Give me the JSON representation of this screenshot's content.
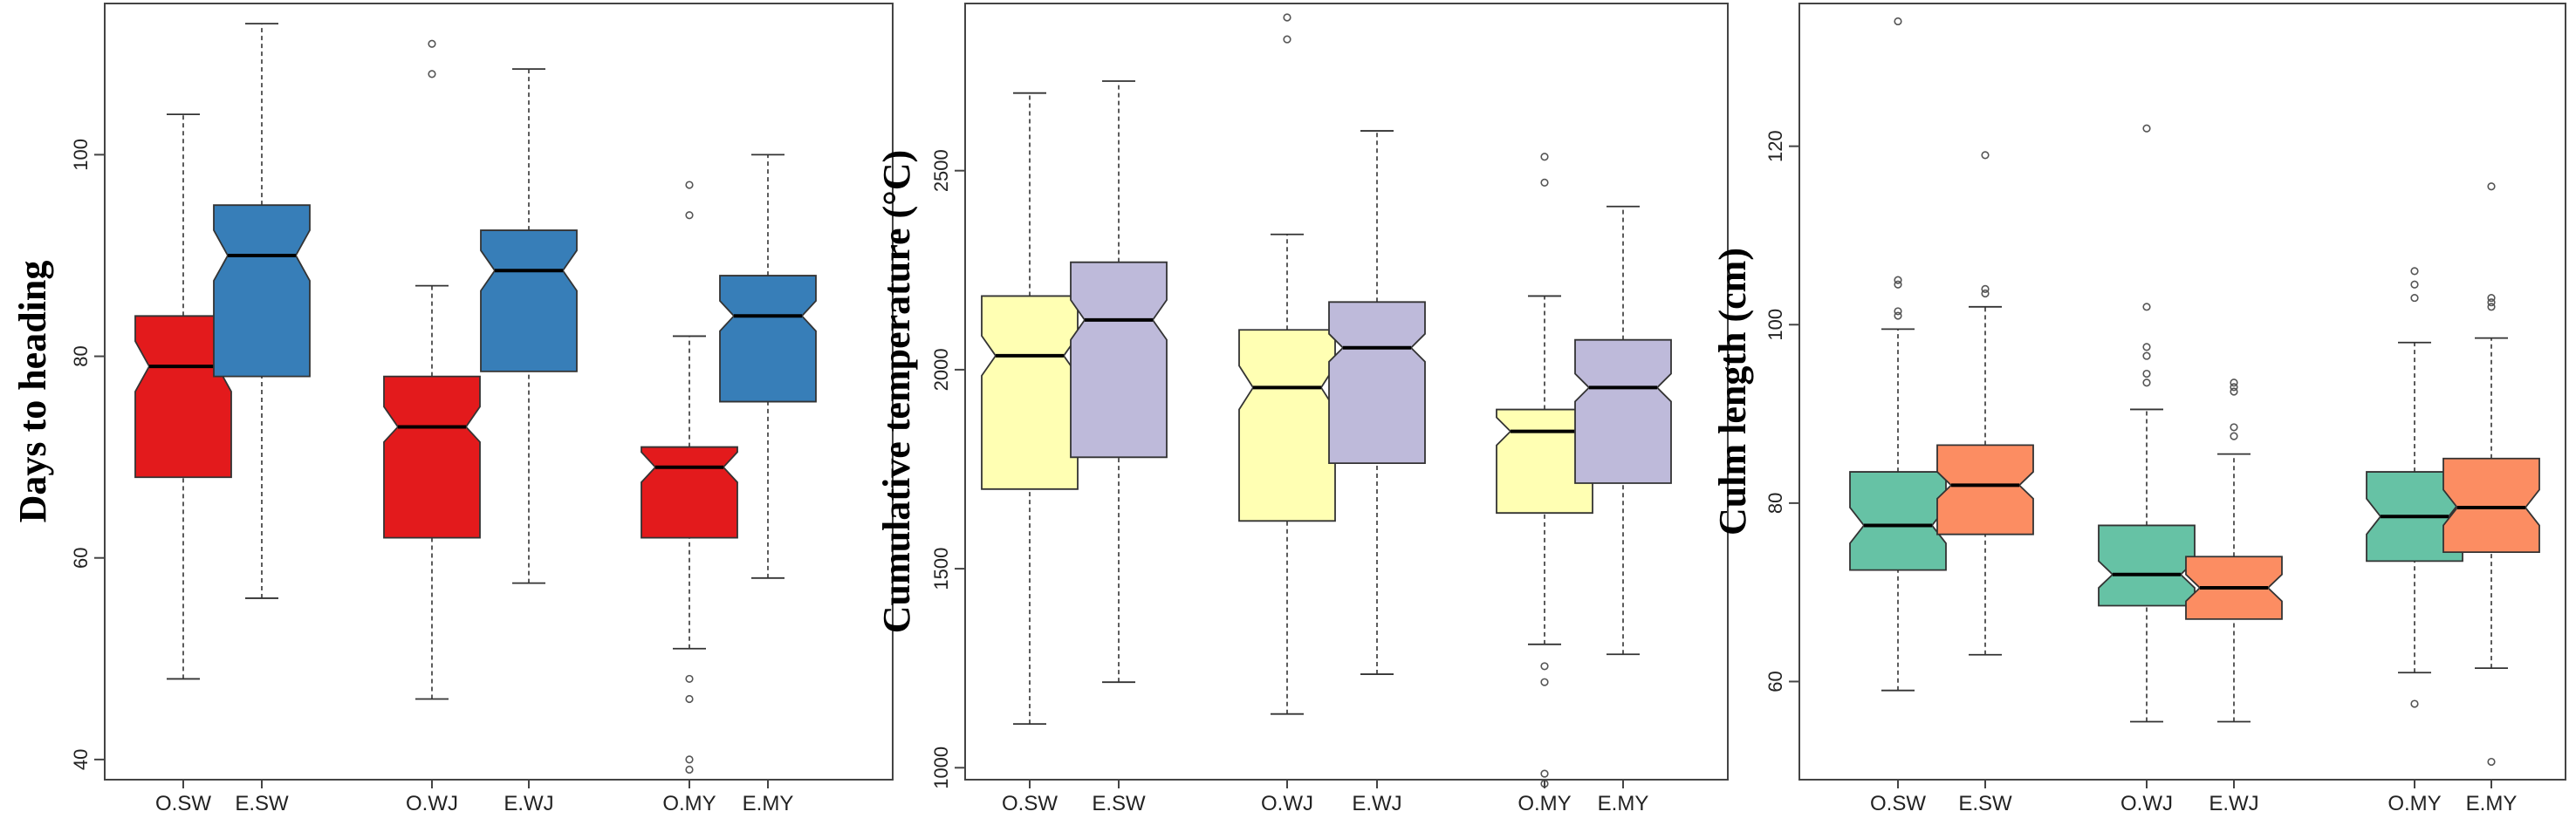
{
  "chart_data": [
    {
      "type": "boxplot",
      "ylabel": "Days to heading",
      "categories": [
        "O.SW",
        "E.SW",
        "O.WJ",
        "E.WJ",
        "O.MY",
        "E.MY"
      ],
      "yticks": [
        40,
        60,
        80,
        100
      ],
      "ylim": [
        38,
        115
      ],
      "notched": true,
      "boxes": [
        {
          "label": "O.SW",
          "color": "#e31a1c",
          "whisker_low": 48,
          "q1": 68,
          "median": 79,
          "q3": 84,
          "whisker_high": 104,
          "notch": [
            76.5,
            81.5
          ],
          "outliers": []
        },
        {
          "label": "E.SW",
          "color": "#377eb8",
          "whisker_low": 56,
          "q1": 78,
          "median": 90,
          "q3": 95,
          "whisker_high": 113,
          "notch": [
            87.5,
            92.5
          ],
          "outliers": []
        },
        {
          "label": "O.WJ",
          "color": "#e31a1c",
          "whisker_low": 46,
          "q1": 62,
          "median": 73,
          "q3": 78,
          "whisker_high": 87,
          "notch": [
            71.5,
            75
          ],
          "outliers": [
            108,
            111
          ]
        },
        {
          "label": "E.WJ",
          "color": "#377eb8",
          "whisker_low": 57.5,
          "q1": 78.5,
          "median": 88.5,
          "q3": 92.5,
          "whisker_high": 108.5,
          "notch": [
            86.5,
            90.5
          ],
          "outliers": []
        },
        {
          "label": "O.MY",
          "color": "#e31a1c",
          "whisker_low": 51,
          "q1": 62,
          "median": 69,
          "q3": 71,
          "whisker_high": 82,
          "notch": [
            67.5,
            70.5
          ],
          "outliers": [
            94,
            97,
            48,
            46,
            40,
            39
          ]
        },
        {
          "label": "E.MY",
          "color": "#377eb8",
          "whisker_low": 58,
          "q1": 75.5,
          "median": 84,
          "q3": 88,
          "whisker_high": 100,
          "notch": [
            82.5,
            85.5
          ],
          "outliers": []
        }
      ]
    },
    {
      "type": "boxplot",
      "ylabel": "Cumulative temperature (°C)",
      "categories": [
        "O.SW",
        "E.SW",
        "O.WJ",
        "E.WJ",
        "O.MY",
        "E.MY"
      ],
      "yticks": [
        1000,
        1500,
        2000,
        2500
      ],
      "ylim": [
        970,
        2920
      ],
      "notched": true,
      "boxes": [
        {
          "label": "O.SW",
          "color": "#ffffb3",
          "whisker_low": 1110,
          "q1": 1700,
          "median": 2035,
          "q3": 2185,
          "whisker_high": 2695,
          "notch": [
            1985,
            2085
          ],
          "outliers": []
        },
        {
          "label": "E.SW",
          "color": "#bebada",
          "whisker_low": 1215,
          "q1": 1780,
          "median": 2125,
          "q3": 2270,
          "whisker_high": 2725,
          "notch": [
            2075,
            2175
          ],
          "outliers": []
        },
        {
          "label": "O.WJ",
          "color": "#ffffb3",
          "whisker_low": 1135,
          "q1": 1620,
          "median": 1955,
          "q3": 2100,
          "whisker_high": 2340,
          "notch": [
            1900,
            2010
          ],
          "outliers": [
            2830,
            2885
          ]
        },
        {
          "label": "E.WJ",
          "color": "#bebada",
          "whisker_low": 1235,
          "q1": 1765,
          "median": 2055,
          "q3": 2170,
          "whisker_high": 2600,
          "notch": [
            2020,
            2090
          ],
          "outliers": []
        },
        {
          "label": "O.MY",
          "color": "#ffffb3",
          "whisker_low": 1310,
          "q1": 1640,
          "median": 1845,
          "q3": 1900,
          "whisker_high": 2185,
          "notch": [
            1810,
            1880
          ],
          "outliers": [
            2470,
            2535,
            1255,
            1215,
            985,
            960
          ]
        },
        {
          "label": "E.MY",
          "color": "#bebada",
          "whisker_low": 1285,
          "q1": 1715,
          "median": 1955,
          "q3": 2075,
          "whisker_high": 2410,
          "notch": [
            1920,
            1990
          ],
          "outliers": []
        }
      ]
    },
    {
      "type": "boxplot",
      "ylabel": "Culm length (cm)",
      "categories": [
        "O.SW",
        "E.SW",
        "O.WJ",
        "E.WJ",
        "O.MY",
        "E.MY"
      ],
      "yticks": [
        60,
        80,
        100,
        120
      ],
      "ylim": [
        49,
        136
      ],
      "notched": true,
      "boxes": [
        {
          "label": "O.SW",
          "color": "#66c2a5",
          "whisker_low": 59,
          "q1": 72.5,
          "median": 77.5,
          "q3": 83.5,
          "whisker_high": 99.5,
          "notch": [
            75.5,
            79.5
          ],
          "outliers": [
            101,
            101.5,
            104.5,
            105,
            134
          ]
        },
        {
          "label": "E.SW",
          "color": "#fc8d62",
          "whisker_low": 63,
          "q1": 76.5,
          "median": 82,
          "q3": 86.5,
          "whisker_high": 102,
          "notch": [
            80.5,
            83.5
          ],
          "outliers": [
            103.5,
            104,
            119
          ]
        },
        {
          "label": "O.WJ",
          "color": "#66c2a5",
          "whisker_low": 55.5,
          "q1": 68.5,
          "median": 72,
          "q3": 77.5,
          "whisker_high": 90.5,
          "notch": [
            70.5,
            73.5
          ],
          "outliers": [
            93.5,
            94.5,
            96.5,
            97.5,
            102,
            122
          ]
        },
        {
          "label": "E.WJ",
          "color": "#fc8d62",
          "whisker_low": 55.5,
          "q1": 67,
          "median": 70.5,
          "q3": 74,
          "whisker_high": 85.5,
          "notch": [
            69,
            72
          ],
          "outliers": [
            87.5,
            88.5,
            92.5,
            93,
            93.5
          ]
        },
        {
          "label": "O.MY",
          "color": "#66c2a5",
          "whisker_low": 61,
          "q1": 73.5,
          "median": 78.5,
          "q3": 83.5,
          "whisker_high": 98,
          "notch": [
            76.5,
            80.5
          ],
          "outliers": [
            57.5,
            103,
            104.5,
            106
          ]
        },
        {
          "label": "E.MY",
          "color": "#fc8d62",
          "whisker_low": 61.5,
          "q1": 74.5,
          "median": 79.5,
          "q3": 85,
          "whisker_high": 98.5,
          "notch": [
            77.5,
            81.5
          ],
          "outliers": [
            102,
            102.5,
            103,
            115.5,
            51
          ]
        }
      ]
    }
  ]
}
